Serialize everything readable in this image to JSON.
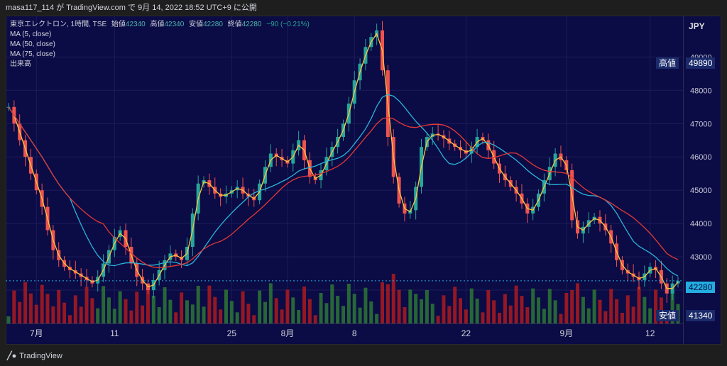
{
  "header": {
    "publish_text": "masa117_114 が TradingView.com で 9月 14, 2022 18:52 UTC+9 に公開"
  },
  "legend": {
    "title": "東京エレクトロン, 1時間, TSE",
    "open_label": "始値",
    "open_value": "42340",
    "high_label": "高値",
    "high_value": "42340",
    "low_label": "安値",
    "low_value": "42280",
    "close_label": "終値",
    "close_value": "42280",
    "change": "−90 (−0.21%)",
    "ma1": "MA (5, close)",
    "ma2": "MA (50, close)",
    "ma3": "MA (75, close)",
    "volume": "出来高"
  },
  "axis": {
    "currency": "JPY"
  },
  "tags": {
    "high_label": "高値",
    "high_value": "49890",
    "last_value": "42280",
    "low_label": "安値",
    "low_value": "41340"
  },
  "footer": {
    "brand": "TradingView"
  },
  "colors": {
    "background": "#0b0b45",
    "candle_up": "#26a69a",
    "candle_down": "#ef5350",
    "vol_up": "#2e7d32",
    "vol_down": "#b71c1c",
    "ma5": "#f9c440",
    "ma50": "#2bb3d8",
    "ma75": "#e53935",
    "last_price": "#22aee0"
  },
  "chart_data": {
    "type": "line",
    "title": "東京エレクトロン, 1時間, TSE",
    "ylabel": "",
    "ylim": [
      41000,
      50200
    ],
    "yticks": [
      42000,
      43000,
      44000,
      45000,
      46000,
      47000,
      48000,
      49000
    ],
    "xticks": [
      {
        "label": "7月",
        "index": 5
      },
      {
        "label": "11",
        "index": 19
      },
      {
        "label": "25",
        "index": 40
      },
      {
        "label": "8月",
        "index": 50
      },
      {
        "label": "8",
        "index": 62
      },
      {
        "label": "22",
        "index": 82
      },
      {
        "label": "9月",
        "index": 100
      },
      {
        "label": "12",
        "index": 115
      }
    ],
    "x_count": 121,
    "close_approx": [
      47500,
      47000,
      46500,
      46000,
      45500,
      45000,
      44500,
      43800,
      43200,
      42900,
      42700,
      42600,
      42500,
      42400,
      42300,
      42200,
      42400,
      42800,
      43200,
      43600,
      43800,
      43300,
      42800,
      42400,
      42200,
      42000,
      42300,
      42600,
      42900,
      43100,
      43000,
      42900,
      43300,
      44300,
      45200,
      45300,
      45100,
      44900,
      44800,
      44900,
      45000,
      45100,
      44900,
      44800,
      44700,
      45200,
      45700,
      46100,
      46000,
      45900,
      45800,
      46200,
      46500,
      45900,
      45400,
      45300,
      45600,
      46000,
      46300,
      46600,
      47000,
      47600,
      48300,
      48800,
      49300,
      49600,
      49800,
      48600,
      46600,
      45400,
      44600,
      44300,
      44400,
      45100,
      46300,
      46600,
      46700,
      46650,
      46550,
      46400,
      46300,
      46200,
      46100,
      46300,
      46600,
      46500,
      46200,
      45800,
      45500,
      45300,
      45100,
      44900,
      44600,
      44300,
      44500,
      44900,
      45300,
      45700,
      46100,
      45900,
      45600,
      44100,
      43700,
      43900,
      44100,
      44200,
      44000,
      43800,
      43400,
      42900,
      42600,
      42500,
      42400,
      42300,
      42500,
      42700,
      42600,
      42200,
      41900,
      42200,
      42280
    ],
    "series": [
      {
        "name": "MA (5, close)",
        "color": "#f9c440"
      },
      {
        "name": "MA (50, close)",
        "color": "#2bb3d8"
      },
      {
        "name": "MA (75, close)",
        "color": "#e53935"
      }
    ],
    "high": 49890,
    "low": 41340,
    "last": 42280
  }
}
